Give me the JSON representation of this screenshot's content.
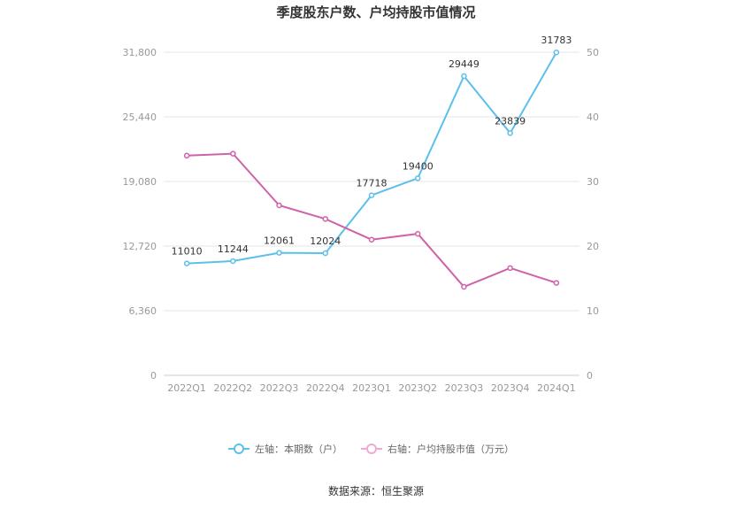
{
  "chart_data": {
    "type": "line",
    "title": "季度股东户数、户均持股市值情况",
    "categories": [
      "2022Q1",
      "2022Q2",
      "2022Q3",
      "2022Q4",
      "2023Q1",
      "2023Q2",
      "2023Q3",
      "2023Q4",
      "2024Q1"
    ],
    "y_left": {
      "ticks": [
        "0",
        "6,360",
        "12,720",
        "19,080",
        "25,440",
        "31,800"
      ],
      "range": [
        0,
        31800
      ]
    },
    "y_right": {
      "ticks": [
        "0",
        "10",
        "20",
        "30",
        "40",
        "50"
      ],
      "range": [
        0,
        50
      ]
    },
    "series": [
      {
        "name": "左轴：本期数（户）",
        "axis": "left",
        "color": "#5bc0eb",
        "values": [
          11010,
          11244,
          12061,
          12024,
          17718,
          19400,
          29449,
          23839,
          31783
        ],
        "labels": [
          "11010",
          "11244",
          "12061",
          "12024",
          "17718",
          "19400",
          "29449",
          "23839",
          "31783"
        ]
      },
      {
        "name": "右轴：户均持股市值（万元）",
        "axis": "right",
        "color": "#d062a8",
        "values": [
          34.0,
          34.3,
          26.3,
          24.2,
          21.0,
          21.9,
          13.7,
          16.6,
          14.3
        ]
      }
    ],
    "grid": true,
    "legend_position": "bottom"
  },
  "source_text": "数据来源：恒生聚源"
}
